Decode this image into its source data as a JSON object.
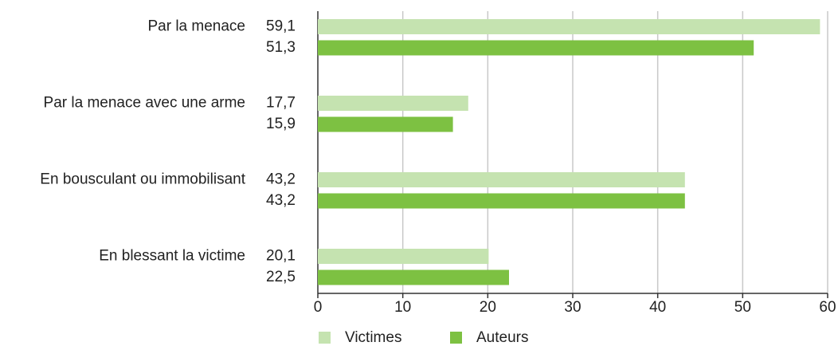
{
  "chart_data": {
    "type": "bar",
    "orientation": "horizontal",
    "categories": [
      "Par la menace",
      "Par la menace avec une arme",
      "En bousculant ou immobilisant",
      "En blessant la victime"
    ],
    "series": [
      {
        "name": "Victimes",
        "color": "#c5e3b0",
        "values": [
          59.1,
          17.7,
          43.2,
          20.1
        ],
        "value_labels": [
          "59,1",
          "17,7",
          "43,2",
          "20,1"
        ]
      },
      {
        "name": "Auteurs",
        "color": "#7dc142",
        "values": [
          51.3,
          15.9,
          43.2,
          22.5
        ],
        "value_labels": [
          "51,3",
          "15,9",
          "43,2",
          "22,5"
        ]
      }
    ],
    "xlim": [
      0,
      60
    ],
    "xticks": [
      0,
      10,
      20,
      30,
      40,
      50,
      60
    ],
    "grid": true,
    "legend": "bottom"
  }
}
